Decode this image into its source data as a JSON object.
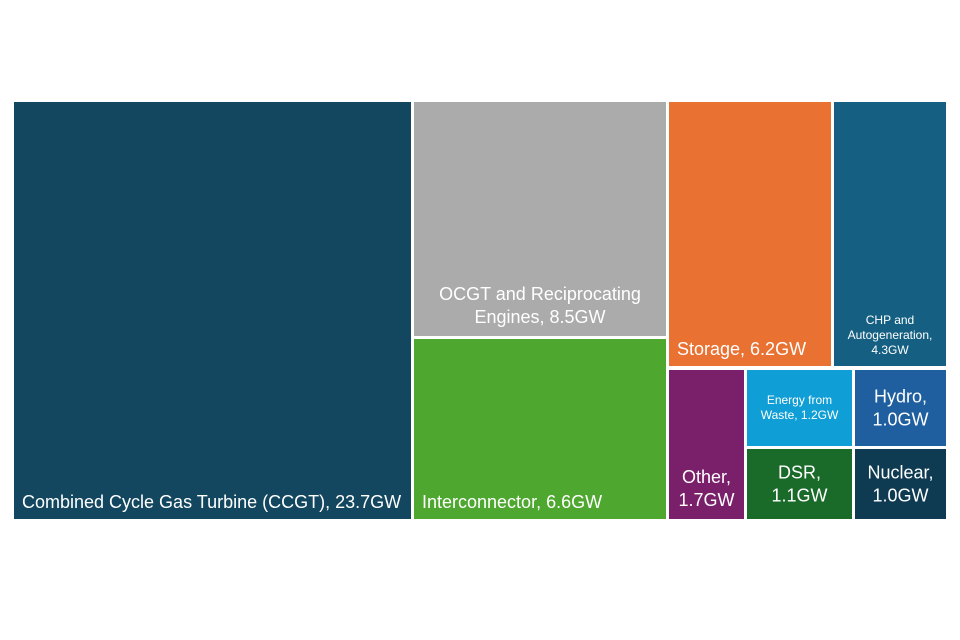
{
  "chart_data": {
    "type": "treemap",
    "items": [
      {
        "label": "Combined Cycle Gas Turbine (CCGT), 23.7GW",
        "value": 23.7,
        "color": "#12475f"
      },
      {
        "label": "OCGT and Reciprocating\nEngines, 8.5GW",
        "value": 8.5,
        "color": "#ababab"
      },
      {
        "label": "Interconnector, 6.6GW",
        "value": 6.6,
        "color": "#4ea72e"
      },
      {
        "label": "Storage, 6.2GW",
        "value": 6.2,
        "color": "#e97132"
      },
      {
        "label": "CHP and\nAutogeneration,\n4.3GW",
        "value": 4.3,
        "color": "#156082"
      },
      {
        "label": "Other,\n1.7GW",
        "value": 1.7,
        "color": "#7a1f6a"
      },
      {
        "label": "Energy from\nWaste, 1.2GW",
        "value": 1.2,
        "color": "#0f9ed5"
      },
      {
        "label": "DSR,\n1.1GW",
        "value": 1.1,
        "color": "#1a6b2a"
      },
      {
        "label": "Hydro,\n1.0GW",
        "value": 1.0,
        "color": "#1f5fa0"
      },
      {
        "label": "Nuclear,\n1.0GW",
        "value": 1.0,
        "color": "#0e3a52"
      }
    ]
  }
}
